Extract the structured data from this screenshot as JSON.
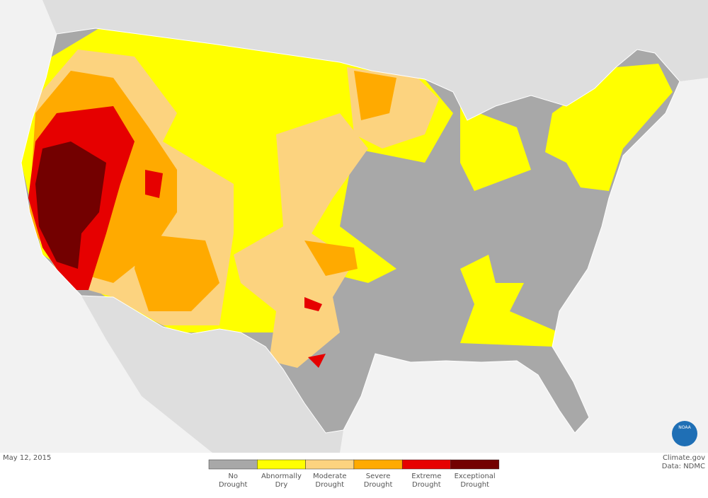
{
  "date": "May 12, 2015",
  "credit": [
    "Climate.gov",
    "Data: NDMC"
  ],
  "logo": "NOAA",
  "legend": [
    {
      "label": [
        "No",
        "Drought"
      ],
      "color": "#a8a8a8"
    },
    {
      "label": [
        "Abnormally",
        "Dry"
      ],
      "color": "#ffff00"
    },
    {
      "label": [
        "Moderate",
        "Drought"
      ],
      "color": "#fcd37f"
    },
    {
      "label": [
        "Severe",
        "Drought"
      ],
      "color": "#ffaa00"
    },
    {
      "label": [
        "Extreme",
        "Drought"
      ],
      "color": "#e60000"
    },
    {
      "label": [
        "Exceptional",
        "Drought"
      ],
      "color": "#730000"
    }
  ]
}
